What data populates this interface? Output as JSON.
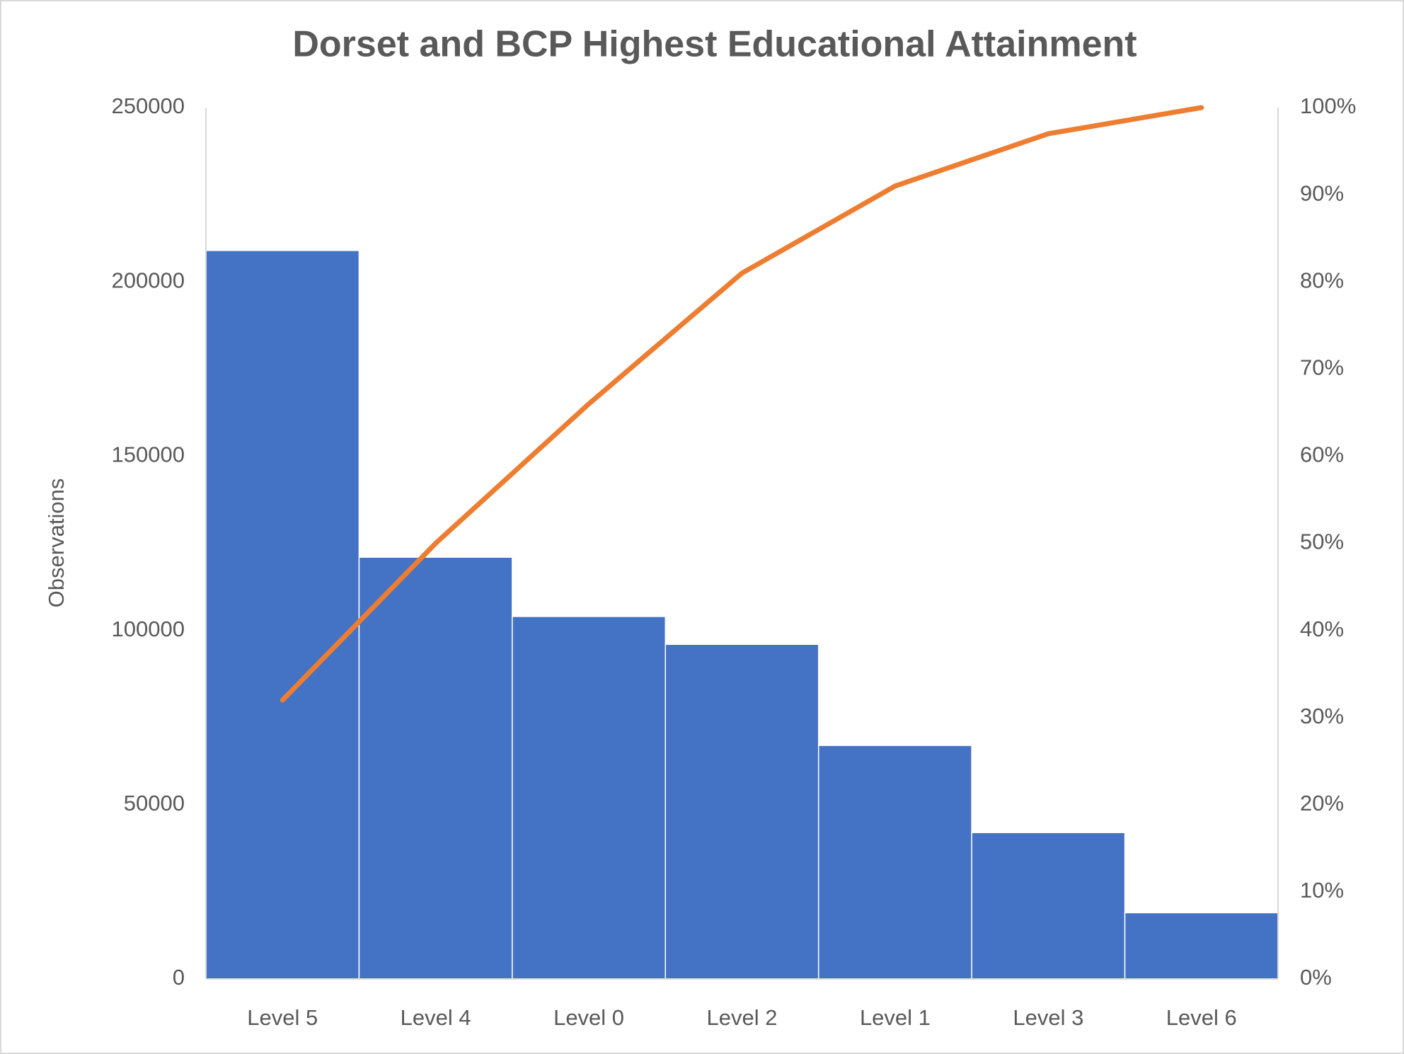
{
  "chart_data": {
    "type": "pareto",
    "title": "Dorset and BCP Highest Educational Attainment",
    "y_label": "Observations",
    "categories": [
      "Level 5",
      "Level 4",
      "Level 0",
      "Level 2",
      "Level 1",
      "Level 3",
      "Level 6"
    ],
    "series": [
      {
        "type": "bar",
        "color": "#4472c4",
        "values": [
          209000,
          121000,
          104000,
          96000,
          67000,
          42000,
          19000
        ]
      },
      {
        "type": "line",
        "color": "#ed7d31",
        "axis": "y2",
        "values": [
          32,
          50,
          66,
          81,
          91,
          97,
          100
        ]
      }
    ],
    "ylim": [
      0,
      250000
    ],
    "yticks": [
      0,
      50000,
      100000,
      150000,
      200000,
      250000
    ],
    "y2lim": [
      0,
      100
    ],
    "y2ticks": [
      {
        "value": 0,
        "label": "0%"
      },
      {
        "value": 10,
        "label": "10%"
      },
      {
        "value": 20,
        "label": "20%"
      },
      {
        "value": 30,
        "label": "30%"
      },
      {
        "value": 40,
        "label": "40%"
      },
      {
        "value": 50,
        "label": "50%"
      },
      {
        "value": 60,
        "label": "60%"
      },
      {
        "value": 70,
        "label": "70%"
      },
      {
        "value": 80,
        "label": "80%"
      },
      {
        "value": 90,
        "label": "90%"
      },
      {
        "value": 100,
        "label": "100%"
      }
    ],
    "grid": false
  }
}
